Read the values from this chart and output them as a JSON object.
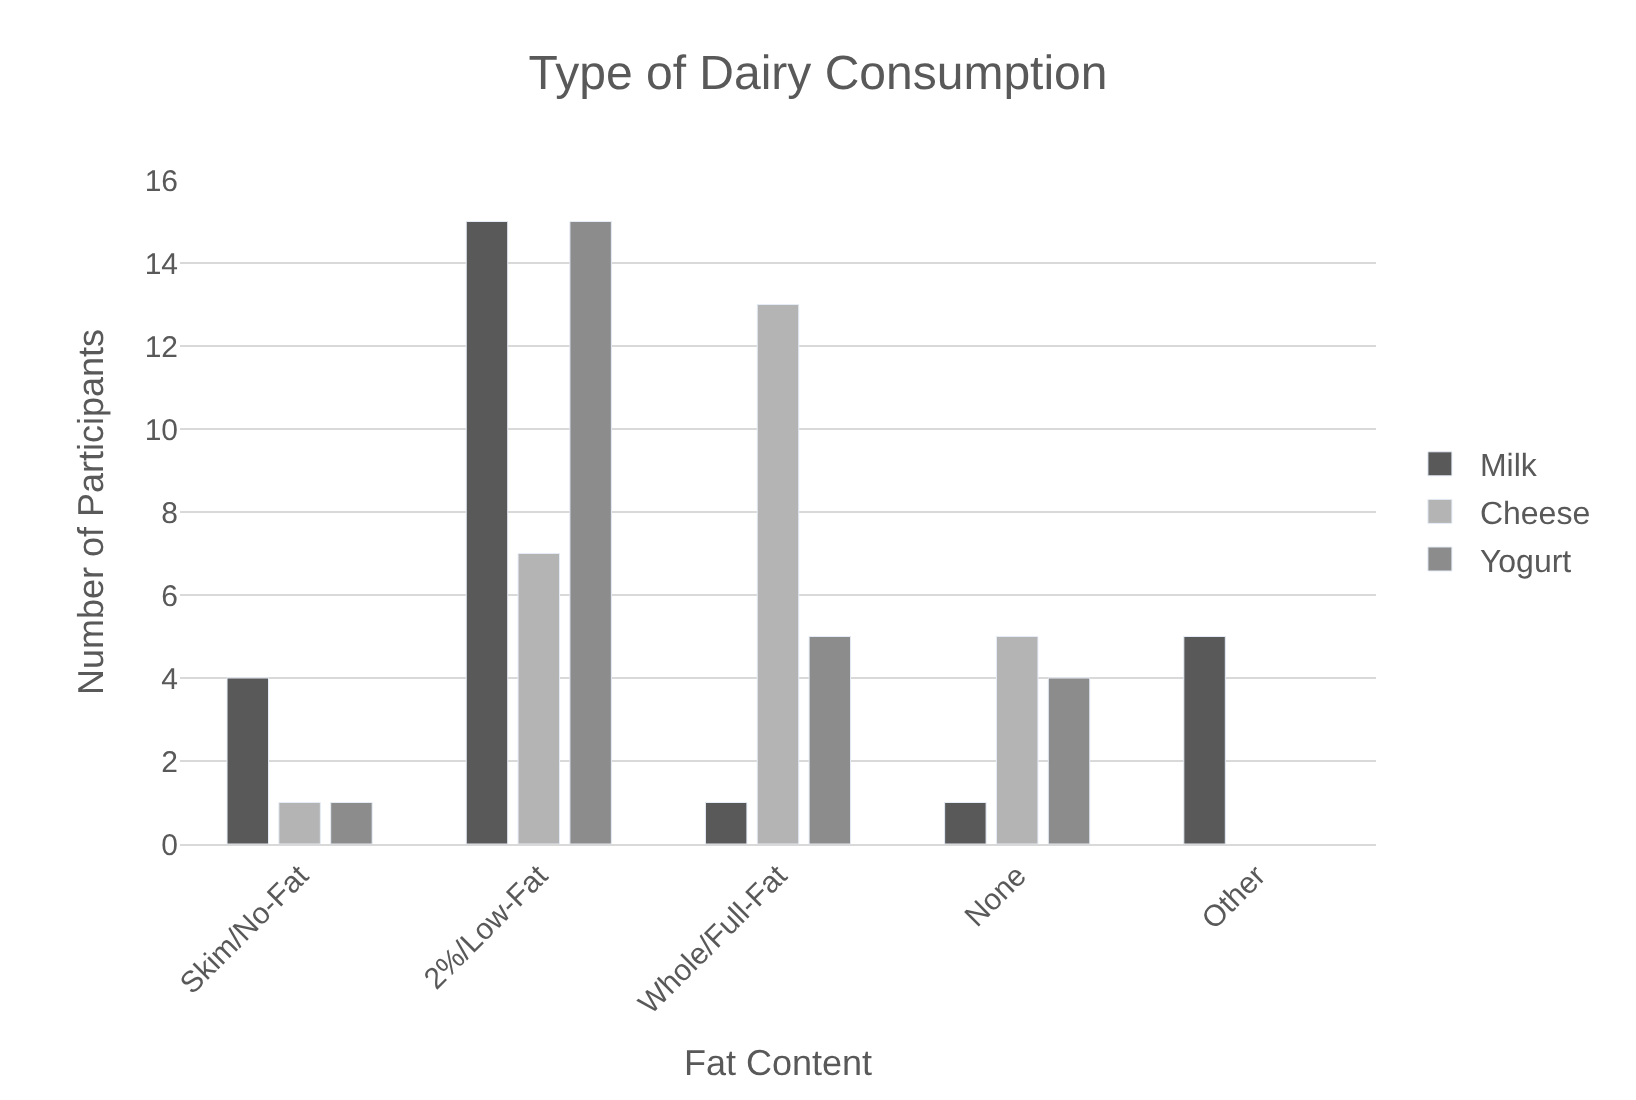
{
  "chart_data": {
    "type": "bar",
    "title": "Type of Dairy Consumption",
    "xlabel": "Fat Content",
    "ylabel": "Number of Participants",
    "categories": [
      "Skim/No-Fat",
      "2%/Low-Fat",
      "Whole/Full-Fat",
      "None",
      "Other"
    ],
    "series": [
      {
        "name": "Milk",
        "color": "#595959",
        "values": [
          4,
          15,
          1,
          1,
          5
        ]
      },
      {
        "name": "Cheese",
        "color": "#b4b4b4",
        "values": [
          1,
          7,
          13,
          5,
          null
        ]
      },
      {
        "name": "Yogurt",
        "color": "#8c8c8c",
        "values": [
          1,
          15,
          5,
          4,
          null
        ]
      }
    ],
    "ylim": [
      0,
      16
    ],
    "yticks": [
      0,
      2,
      4,
      6,
      8,
      10,
      12,
      14,
      16
    ],
    "grid": "y",
    "legend": "right"
  }
}
